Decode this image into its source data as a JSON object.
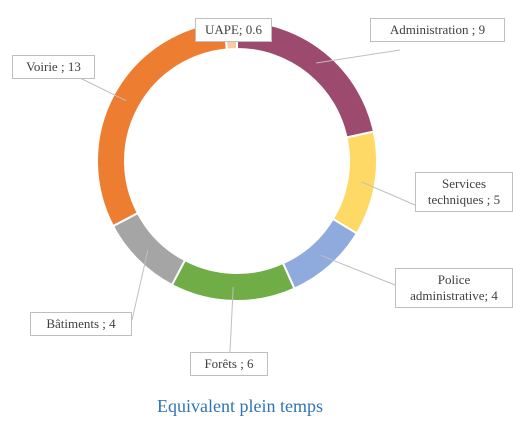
{
  "chart_data": {
    "type": "pie",
    "title": "Equivalent plein temps",
    "values": [
      9,
      5,
      4,
      6,
      4,
      13,
      0.6
    ],
    "value_labels": [
      "Administration  ; 9",
      "Services\ntechniques ; 5",
      "Police\nadministrative;  4",
      "Forêts ; 6",
      "Bâtiments  ; 4",
      "Voirie  ; 13",
      "UAPE; 0.6"
    ],
    "colors": [
      "#9c4a6e",
      "#ffd966",
      "#8faadc",
      "#70ad47",
      "#a5a5a5",
      "#ed7d31",
      "#f8cba4"
    ]
  }
}
